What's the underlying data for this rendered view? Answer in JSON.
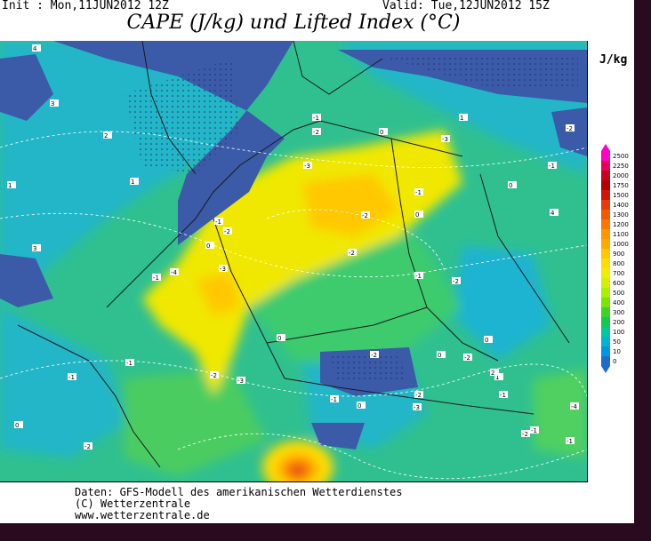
{
  "header": {
    "init": "Init : Mon,11JUN2012  12Z",
    "valid": "Valid: Tue,12JUN2012  15Z",
    "title": "CAPE (J/kg) und Lifted Index (°C)"
  },
  "legend": {
    "unit": "J/kg",
    "levels": [
      "2500",
      "2250",
      "2000",
      "1750",
      "1500",
      "1400",
      "1300",
      "1200",
      "1100",
      "1000",
      "900",
      "800",
      "700",
      "600",
      "500",
      "400",
      "300",
      "200",
      "100",
      "50",
      "10",
      "0"
    ],
    "colors": [
      "#ff00c8",
      "#e8005a",
      "#c8001e",
      "#b40000",
      "#d2140a",
      "#e63c0a",
      "#f05a00",
      "#fa7800",
      "#ff9600",
      "#ffaa00",
      "#ffc800",
      "#ffdc00",
      "#f0ee00",
      "#d2f000",
      "#aaf000",
      "#78e600",
      "#3cd228",
      "#14c850",
      "#00c89b",
      "#00b4d2",
      "#0096e6",
      "#1e6ec8"
    ]
  },
  "lifted_index_labels": [
    "-1",
    "-2",
    "-3",
    "0",
    "1",
    "2",
    "3",
    "4",
    "-1",
    "-2",
    "-3",
    "0",
    "-1",
    "-2",
    "0",
    "1",
    "-1",
    "-2",
    "0",
    "-3",
    "-4",
    "-1",
    "-2",
    "-1",
    "-2",
    "0",
    "-1",
    "-2",
    "0",
    "1",
    "-1",
    "-2",
    "-3",
    "0",
    "-2",
    "-1",
    "0",
    "-2",
    "-1",
    "-1",
    "-4",
    "-2",
    "-3",
    "-1",
    "0",
    "-2",
    "1",
    "3",
    "4",
    "2"
  ],
  "credits": {
    "line1": "Daten: GFS-Modell des amerikanischen Wetterdienstes",
    "line2": "(C) Wetterzentrale",
    "line3": "www.wetterzentrale.de"
  },
  "colors": {
    "sea_dark": "#3b5aa8",
    "cape_low": "#1fb0b0",
    "cape_mid": "#35c86e",
    "cape_high": "#f0e800",
    "cape_peak": "#ffaa00",
    "border": "#2a0a1e"
  }
}
